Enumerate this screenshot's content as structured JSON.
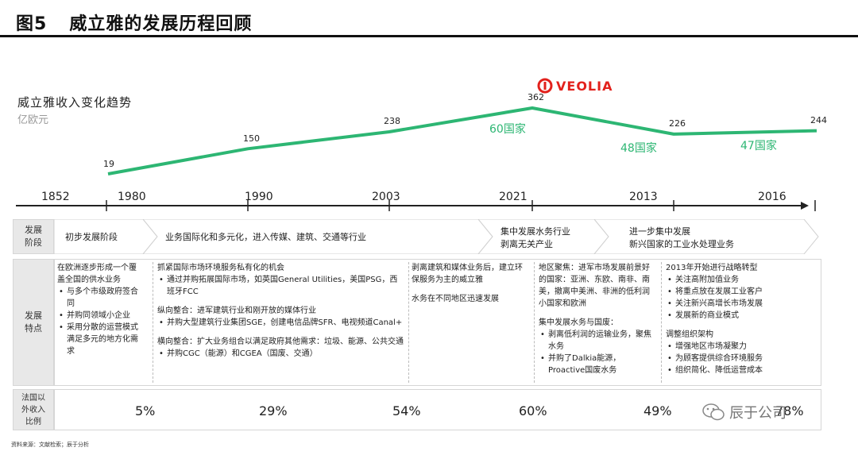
{
  "header": {
    "figure_no": "图5",
    "title": "威立雅的发展历程回顾"
  },
  "chart": {
    "subtitle": "威立雅收入变化趋势",
    "unit": "亿欧元",
    "brand": "VEOLIA",
    "line_color": "#2db673",
    "chart_data": {
      "type": "line",
      "title": "威立雅收入变化趋势",
      "ylabel": "亿欧元",
      "x": [
        "1980",
        "1990",
        "2003",
        "2021",
        "2013",
        "2016"
      ],
      "series": [
        {
          "values": [
            19,
            150,
            238,
            362,
            226,
            244
          ]
        }
      ],
      "labels": [
        "19",
        "150",
        "238",
        "362",
        "226",
        "244"
      ],
      "annotations": [
        "60国家",
        "48国家",
        "47国家"
      ]
    }
  },
  "timeline": {
    "years": [
      "1852",
      "1980",
      "1990",
      "2003",
      "2021",
      "2013",
      "2016"
    ]
  },
  "stage": {
    "header": "发展\n阶段",
    "items": [
      "初步发展阶段",
      "业务国际化和多元化，进入传媒、建筑、交通等行业",
      "集中发展水务行业\n剥离无关产业",
      "进一步集中发展\n新兴国家的工业水处理业务"
    ]
  },
  "features": {
    "header": "发展\n特点",
    "col1": {
      "text": "在欧洲逐步形成一个覆盖全国的供水业务",
      "bullets": [
        "与多个市级政府签合同",
        "并购同领域小企业",
        "采用分散的运营模式满足多元的地方化需求"
      ]
    },
    "col2": {
      "h1": "抓紧国际市场环境服务私有化的机会",
      "b1": [
        "通过并购拓展国际市场，如英国General Utilities，美国PSG，西班牙FCC"
      ],
      "h2": "纵向整合：进军建筑行业和刚开放的媒体行业",
      "b2": [
        "并购大型建筑行业集团SGE，创建电信品牌SFR、电视频道Canal+"
      ],
      "h3": "横向整合：扩大业务组合以满足政府其他需求：垃圾、能源、公共交通",
      "b3": [
        "并购CGC（能源）和CGEA（国废、交通）"
      ]
    },
    "col3": {
      "p1": "剥离建筑和媒体业务后，建立环保服务为主的威立雅",
      "p2": "水务在不同地区迅速发展"
    },
    "col4": {
      "h1": "地区聚焦：进军市场发展前景好的国家：亚洲、东欧、南非、南美，撤离中美洲、非洲的低利润小国家和欧洲",
      "h2": "集中发展水务与国废：",
      "b2": [
        "剥离低利润的运输业务，聚焦水务",
        "并购了Dalkia能源，Proactive国废水务"
      ]
    },
    "col5": {
      "h1": "2013年开始进行战略转型",
      "b1": [
        "关注高附加值业务",
        "将重点放在发展工业客户",
        "关注新兴高增长市场发展",
        "发展新的商业模式"
      ],
      "h2": "调整组织架构",
      "b2": [
        "增强地区市场凝聚力",
        "为顾客提供综合环境服务",
        "组织简化、降低运营成本"
      ]
    }
  },
  "foreign": {
    "header": "法国以\n外收入\n比例",
    "values": [
      "5%",
      "29%",
      "54%",
      "60%",
      "49%",
      "78%"
    ]
  },
  "footer": {
    "source": "资料来源：文献检索；辰于分析"
  },
  "watermark": {
    "text": "辰于公司"
  }
}
